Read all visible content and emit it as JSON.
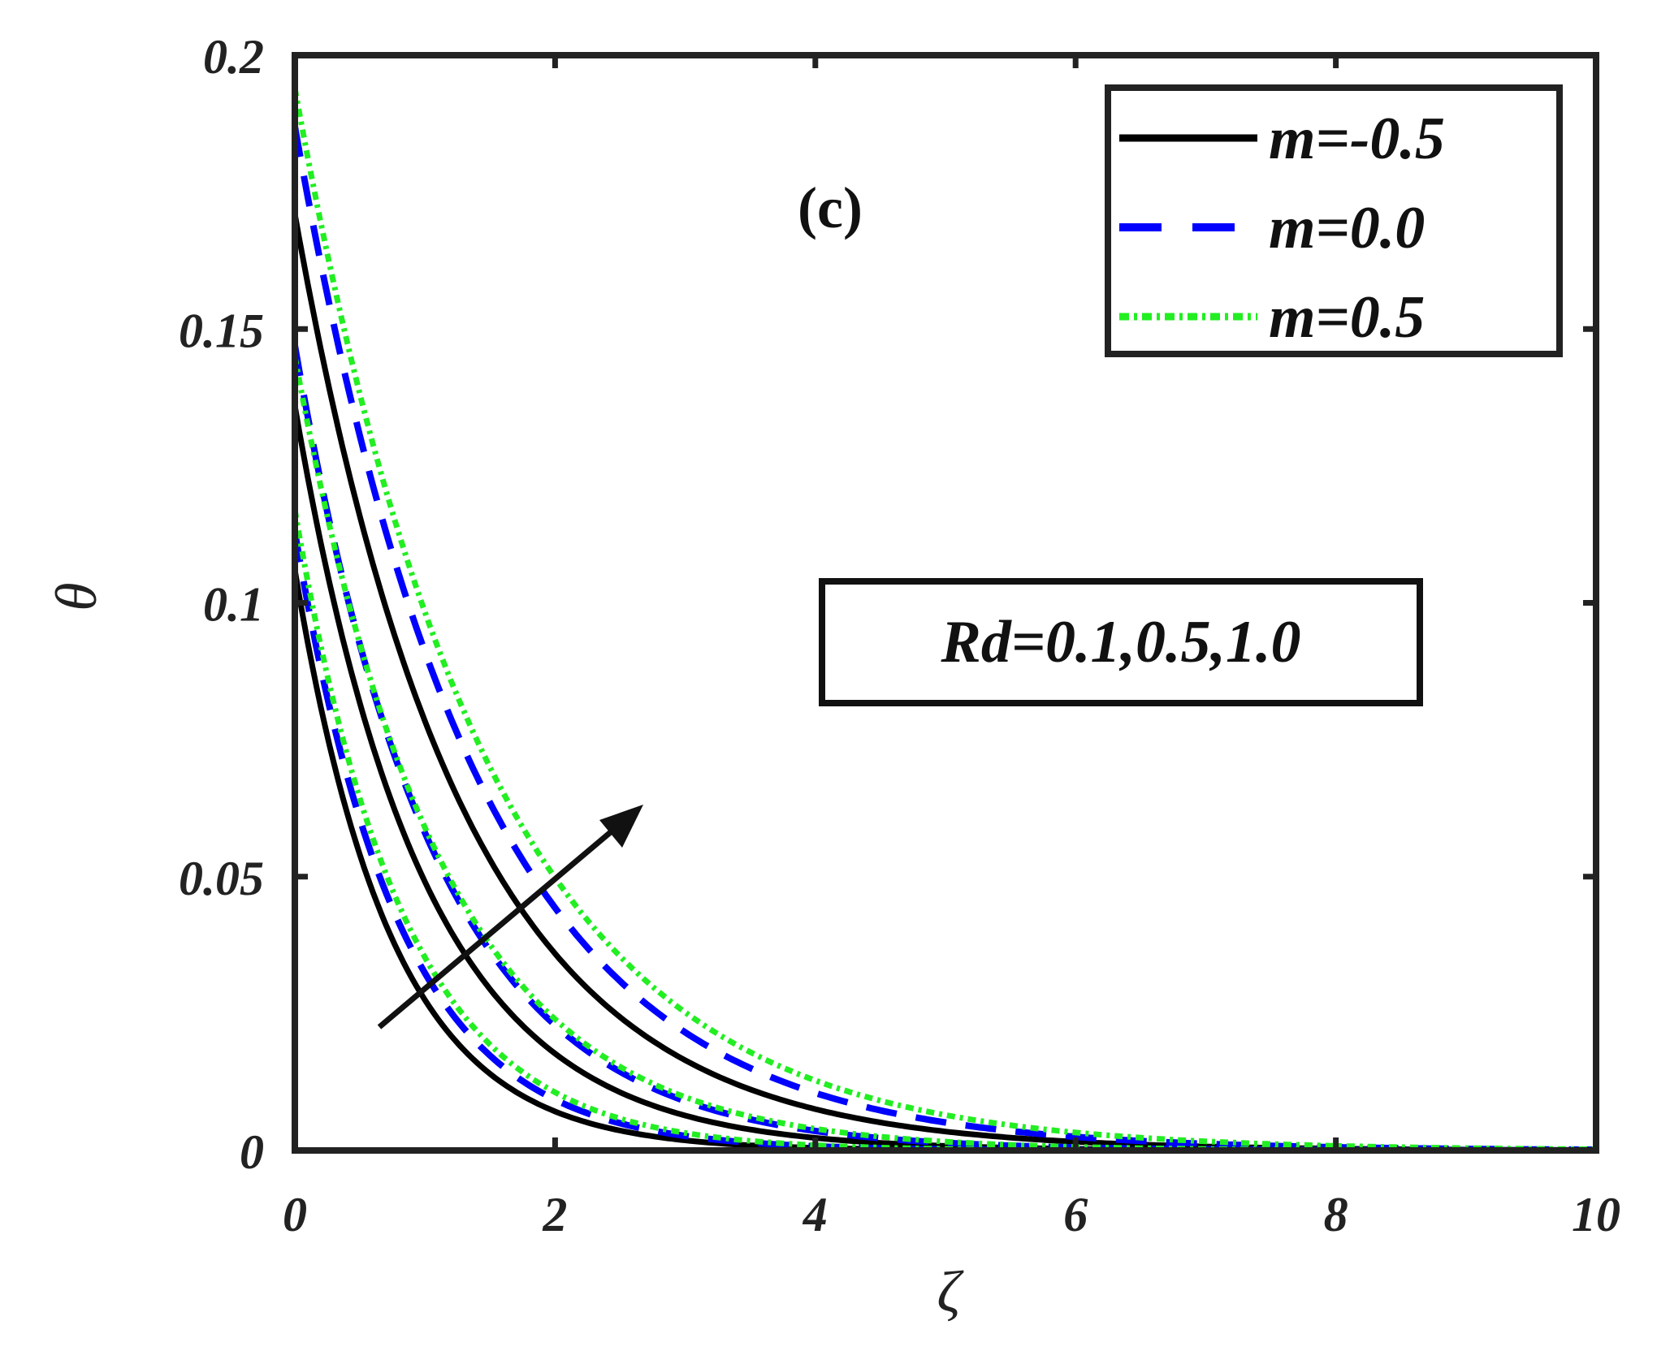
{
  "chart_data": {
    "type": "line",
    "title": "",
    "xlabel": "ζ",
    "ylabel": "θ",
    "xlim": [
      0,
      10
    ],
    "ylim": [
      0,
      0.2
    ],
    "x_ticks": [
      "0",
      "2",
      "4",
      "6",
      "8",
      "10"
    ],
    "y_ticks": [
      "0",
      "0.05",
      "0.1",
      "0.15",
      "0.2"
    ],
    "grid": false,
    "legend_position": "top-right",
    "panel_label": "(c)",
    "parameter_box": "Rd=0.1,0.5,1.0",
    "arrow_annotation": "increasing Rd",
    "series": [
      {
        "name": "m=-0.5",
        "style": "solid",
        "color": "#000000",
        "curves": [
          {
            "theta0": 0.106,
            "decay_rate": 1.35
          },
          {
            "theta0": 0.136,
            "decay_rate": 1.02
          },
          {
            "theta0": 0.171,
            "decay_rate": 0.78
          }
        ]
      },
      {
        "name": "m=0.0",
        "style": "dashed",
        "color": "#0000ff",
        "curves": [
          {
            "theta0": 0.113,
            "decay_rate": 1.25
          },
          {
            "theta0": 0.147,
            "decay_rate": 0.93
          },
          {
            "theta0": 0.187,
            "decay_rate": 0.72
          }
        ]
      },
      {
        "name": "m=0.5",
        "style": "dotted",
        "color": "#22ee22",
        "curves": [
          {
            "theta0": 0.117,
            "decay_rate": 1.2
          },
          {
            "theta0": 0.145,
            "decay_rate": 0.9
          },
          {
            "theta0": 0.194,
            "decay_rate": 0.68
          }
        ]
      }
    ]
  }
}
